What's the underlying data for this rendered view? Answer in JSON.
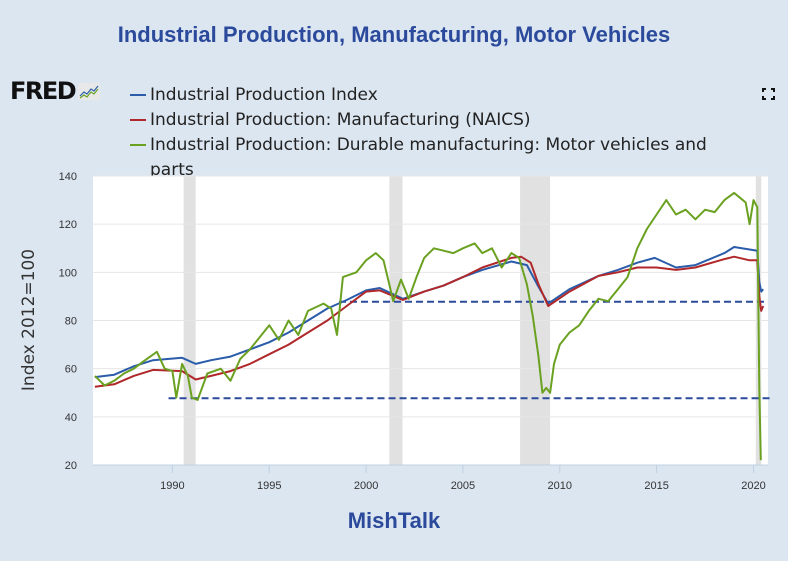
{
  "title": "Industrial Production, Manufacturing, Motor Vehicles",
  "logo": {
    "text": "FRED",
    "icon": "fred-chart-icon"
  },
  "fullscreen_icon": "fullscreen-icon",
  "footer": "MishTalk",
  "chart_data": {
    "type": "line",
    "title": "Industrial Production, Manufacturing, Motor Vehicles",
    "xlabel": "",
    "ylabel": "Index 2012=100",
    "xlim": [
      1985.9,
      2020.75
    ],
    "ylim": [
      20,
      140
    ],
    "yticks": [
      20,
      40,
      60,
      80,
      100,
      120,
      140
    ],
    "xticks": [
      1990,
      1995,
      2000,
      2005,
      2010,
      2015,
      2020
    ],
    "grid": true,
    "legend_position": "top-left",
    "recessions": [
      [
        1990.58,
        1991.2
      ],
      [
        2001.2,
        2001.88
      ],
      [
        2007.95,
        2009.5
      ],
      [
        2020.12,
        2020.4
      ]
    ],
    "reference_lines": [
      {
        "value": 87.8,
        "x_start": 1998.6,
        "x_end": 2020.6,
        "color": "#2b4a9b",
        "style": "dashed"
      },
      {
        "value": 47.7,
        "x_start": 1989.8,
        "x_end": 2020.9,
        "color": "#2b4a9b",
        "style": "dashed"
      }
    ],
    "series": [
      {
        "name": "Industrial Production Index",
        "color": "#2a5caa",
        "points": [
          [
            1986,
            56.5
          ],
          [
            1987,
            57.5
          ],
          [
            1988,
            61
          ],
          [
            1989,
            63.5
          ],
          [
            1990.5,
            64.5
          ],
          [
            1991.2,
            62
          ],
          [
            1992,
            63.5
          ],
          [
            1993,
            65
          ],
          [
            1994,
            68
          ],
          [
            1995,
            71
          ],
          [
            1996,
            75
          ],
          [
            1997,
            80
          ],
          [
            1998,
            85
          ],
          [
            1999,
            88.5
          ],
          [
            2000,
            92.5
          ],
          [
            2000.7,
            93.5
          ],
          [
            2001.9,
            89
          ],
          [
            2003,
            92
          ],
          [
            2004,
            94.5
          ],
          [
            2005,
            98
          ],
          [
            2006,
            101
          ],
          [
            2007.5,
            104.5
          ],
          [
            2008.3,
            103
          ],
          [
            2008.9,
            94
          ],
          [
            2009.4,
            87
          ],
          [
            2010.5,
            93
          ],
          [
            2012,
            98.5
          ],
          [
            2013,
            101
          ],
          [
            2014,
            104
          ],
          [
            2014.9,
            106
          ],
          [
            2016,
            102
          ],
          [
            2017,
            103
          ],
          [
            2018.5,
            108
          ],
          [
            2019,
            110.5
          ],
          [
            2019.8,
            109.5
          ],
          [
            2020.2,
            109
          ],
          [
            2020.3,
            96
          ],
          [
            2020.4,
            92
          ],
          [
            2020.5,
            93
          ]
        ]
      },
      {
        "name": "Industrial Production: Manufacturing (NAICS)",
        "color": "#b0282a",
        "points": [
          [
            1986,
            52.5
          ],
          [
            1987,
            53.5
          ],
          [
            1988,
            57
          ],
          [
            1989,
            59.5
          ],
          [
            1990.5,
            59
          ],
          [
            1991.2,
            55.5
          ],
          [
            1992,
            57
          ],
          [
            1993,
            59
          ],
          [
            1994,
            62
          ],
          [
            1995,
            66
          ],
          [
            1996,
            70
          ],
          [
            1997,
            75
          ],
          [
            1998,
            80
          ],
          [
            1999,
            86
          ],
          [
            2000,
            92
          ],
          [
            2000.7,
            92.5
          ],
          [
            2001.9,
            88.5
          ],
          [
            2003,
            92
          ],
          [
            2004,
            94.5
          ],
          [
            2005,
            98
          ],
          [
            2006,
            102
          ],
          [
            2007.5,
            106
          ],
          [
            2008,
            106.5
          ],
          [
            2008.5,
            104
          ],
          [
            2008.9,
            95
          ],
          [
            2009.4,
            86
          ],
          [
            2010.5,
            92
          ],
          [
            2012,
            98.5
          ],
          [
            2013,
            100
          ],
          [
            2014,
            102
          ],
          [
            2015,
            102
          ],
          [
            2016,
            101
          ],
          [
            2017,
            102
          ],
          [
            2018.5,
            105.5
          ],
          [
            2019,
            106.5
          ],
          [
            2019.8,
            105
          ],
          [
            2020.2,
            105
          ],
          [
            2020.3,
            90
          ],
          [
            2020.4,
            84
          ],
          [
            2020.5,
            86
          ]
        ]
      },
      {
        "name": "Industrial Production: Durable manufacturing: Motor vehicles and parts",
        "color": "#6aa121",
        "points": [
          [
            1986,
            57
          ],
          [
            1986.5,
            53
          ],
          [
            1987,
            55
          ],
          [
            1987.5,
            58
          ],
          [
            1988,
            60
          ],
          [
            1988.5,
            63
          ],
          [
            1989.2,
            67
          ],
          [
            1989.6,
            60
          ],
          [
            1990,
            59
          ],
          [
            1990.2,
            48
          ],
          [
            1990.5,
            62
          ],
          [
            1990.8,
            57
          ],
          [
            1991,
            48
          ],
          [
            1991.3,
            47
          ],
          [
            1991.8,
            58
          ],
          [
            1992.5,
            60
          ],
          [
            1993,
            55
          ],
          [
            1993.5,
            64
          ],
          [
            1994,
            68
          ],
          [
            1995,
            78
          ],
          [
            1995.5,
            72
          ],
          [
            1996,
            80
          ],
          [
            1996.5,
            74
          ],
          [
            1997,
            84
          ],
          [
            1997.8,
            87
          ],
          [
            1998.2,
            85
          ],
          [
            1998.5,
            74
          ],
          [
            1998.8,
            98
          ],
          [
            1999.5,
            100
          ],
          [
            2000,
            105
          ],
          [
            2000.5,
            108
          ],
          [
            2000.9,
            105
          ],
          [
            2001.2,
            95
          ],
          [
            2001.4,
            88
          ],
          [
            2001.8,
            97
          ],
          [
            2002.2,
            89
          ],
          [
            2002.6,
            98
          ],
          [
            2003,
            106
          ],
          [
            2003.5,
            110
          ],
          [
            2004,
            109
          ],
          [
            2004.5,
            108
          ],
          [
            2005,
            110
          ],
          [
            2005.6,
            112
          ],
          [
            2006,
            108
          ],
          [
            2006.5,
            110
          ],
          [
            2007,
            102
          ],
          [
            2007.5,
            108
          ],
          [
            2007.9,
            106
          ],
          [
            2008.3,
            95
          ],
          [
            2008.6,
            82
          ],
          [
            2008.9,
            65
          ],
          [
            2009.1,
            50
          ],
          [
            2009.3,
            52
          ],
          [
            2009.5,
            50
          ],
          [
            2009.7,
            62
          ],
          [
            2010,
            70
          ],
          [
            2010.5,
            75
          ],
          [
            2011,
            78
          ],
          [
            2011.5,
            84
          ],
          [
            2012,
            89
          ],
          [
            2012.5,
            88
          ],
          [
            2013,
            93
          ],
          [
            2013.5,
            98
          ],
          [
            2014,
            110
          ],
          [
            2014.5,
            118
          ],
          [
            2015,
            124
          ],
          [
            2015.5,
            130
          ],
          [
            2016,
            124
          ],
          [
            2016.5,
            126
          ],
          [
            2017,
            122
          ],
          [
            2017.5,
            126
          ],
          [
            2018,
            125
          ],
          [
            2018.5,
            130
          ],
          [
            2019,
            133
          ],
          [
            2019.3,
            131
          ],
          [
            2019.6,
            129
          ],
          [
            2019.8,
            120
          ],
          [
            2020,
            130
          ],
          [
            2020.2,
            127
          ],
          [
            2020.3,
            52
          ],
          [
            2020.38,
            22
          ]
        ]
      }
    ]
  }
}
